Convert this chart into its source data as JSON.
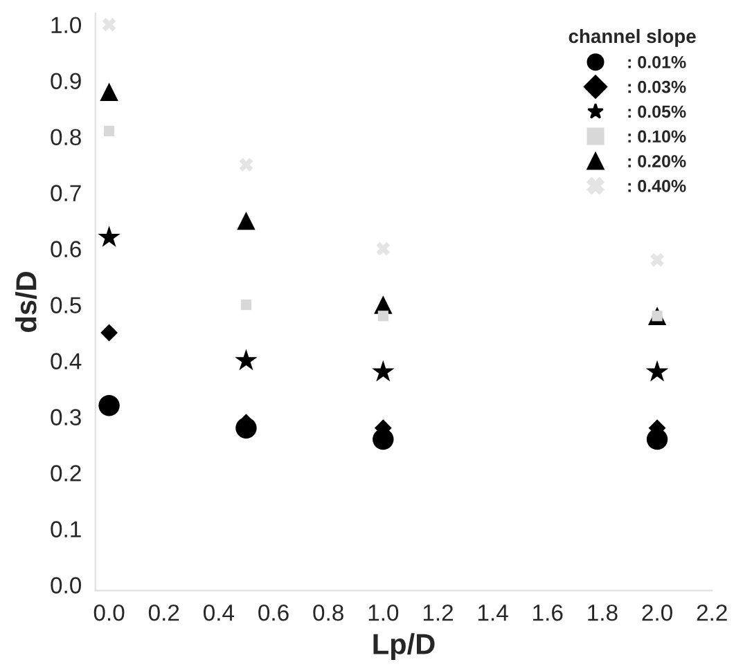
{
  "chart_data": {
    "type": "scatter",
    "xlabel": "Lp/D",
    "ylabel": "ds/D",
    "legend_title": "channel slope",
    "x": [
      0.0,
      0.5,
      1.0,
      2.0
    ],
    "series": [
      {
        "name": ": 0.01%",
        "color": "#000000",
        "marker": "circle",
        "values": [
          0.32,
          0.28,
          0.26,
          0.26
        ]
      },
      {
        "name": ": 0.03%",
        "color": "#000000",
        "marker": "diamond",
        "values": [
          0.45,
          0.29,
          0.28,
          0.28
        ]
      },
      {
        "name": ": 0.05%",
        "color": "#000000",
        "marker": "star",
        "values": [
          0.62,
          0.4,
          0.38,
          0.38
        ]
      },
      {
        "name": ": 0.10%",
        "color": "#d8d8d8",
        "marker": "square",
        "values": [
          0.81,
          0.5,
          0.48,
          0.48
        ]
      },
      {
        "name": ": 0.20%",
        "color": "#000000",
        "marker": "triangle",
        "values": [
          0.88,
          0.65,
          0.5,
          0.48
        ]
      },
      {
        "name": ": 0.40%",
        "color": "#e4e4e4",
        "marker": "cross",
        "values": [
          1.0,
          0.75,
          0.6,
          0.58
        ]
      }
    ],
    "xlim": [
      -0.05,
      2.2
    ],
    "ylim": [
      -0.01,
      1.02
    ],
    "xticks": [
      {
        "value": 0.0,
        "label": "0.0"
      },
      0.2,
      0.4,
      0.6,
      0.8,
      {
        "value": 1.0,
        "label": "1.0"
      },
      1.2,
      1.4,
      1.6,
      1.8,
      {
        "value": 2.0,
        "label": "2.0"
      },
      2.2
    ],
    "yticks": [
      {
        "value": 0.0,
        "label": "0.0"
      },
      0.1,
      0.2,
      0.3,
      0.4,
      0.5,
      0.6,
      0.7,
      0.8,
      0.9,
      {
        "value": 1.0,
        "label": "1.0"
      }
    ],
    "grid": false,
    "legend": "top right"
  }
}
